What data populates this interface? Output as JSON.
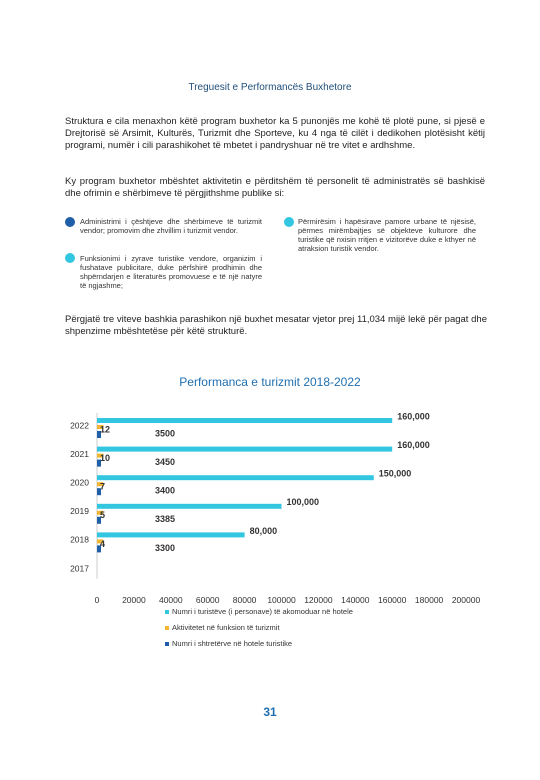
{
  "header": {
    "title": "Treguesit e Performancës Buxhetore"
  },
  "paragraphs": [
    "Struktura e cila menaxhon këtë program buxhetor ka 5 punonjës me kohë të plotë pune, si pjesë e Drejtorisë së Arsimit, Kulturës, Turizmit dhe Sporteve, ku 4 nga të cilët i dedikohen plotësisht këtij programi, numër i cili parashikohet të mbetet i pandryshuar në tre vitet e ardhshme.",
    "Ky program buxhetor mbështet aktivitetin e përditshëm të personelit të administratës së bashkisë dhe ofrimin e shërbimeve të përgjithshme publike si:"
  ],
  "bullets": [
    "Administrimi i çështjeve dhe shërbimeve të turizmit vendor; promovim dhe zhvillim i turizmit vendor.",
    "Funksionimi i zyrave turistike vendore, organizim i fushatave publicitare, duke përfshirë prodhimin dhe shpërndarjen e literaturës promovuese e të një natyre të ngjashme;",
    "Përmirësim i hapësirave pamore urbane të njësisë, përmes mirëmbajtjes së objekteve kulturore dhe turistike që nxisin rritjen e vizitorëve duke e kthyer në atraksion turistik vendor."
  ],
  "closing": "Përgjatë tre viteve bashkia parashikon një buxhet mesatar vjetor prej 11,034 mijë lekë për pagat dhe shpenzime mbështetëse për këtë strukturë.",
  "chart_data": {
    "type": "bar",
    "orientation": "horizontal",
    "title": "Performanca e turizmit 2018-2022",
    "categories": [
      "2022",
      "2021",
      "2020",
      "2019",
      "2018",
      "2017"
    ],
    "series": [
      {
        "name": "Numri i turistëve (i personave) të akomoduar në hotele",
        "color": "#33c6e0",
        "values": [
          160000,
          160000,
          150000,
          100000,
          80000,
          null
        ],
        "value_labels": [
          "160,000",
          "160,000",
          "150,000",
          "100,000",
          "80,000",
          null
        ]
      },
      {
        "name": "Aktivitetet në funksion të turizmit",
        "color": "#f2b632",
        "values": [
          3500,
          3450,
          3400,
          3385,
          3300,
          null
        ]
      },
      {
        "name": "Numri i shtretërve  në hotele turistike",
        "color": "#1f5fa8",
        "values": [
          12,
          10,
          7,
          5,
          4,
          null
        ]
      }
    ],
    "xlim": [
      0,
      200000
    ],
    "xticks": [
      0,
      20000,
      40000,
      60000,
      80000,
      100000,
      120000,
      140000,
      160000,
      180000,
      200000
    ],
    "grid": false
  },
  "page_number": "31"
}
